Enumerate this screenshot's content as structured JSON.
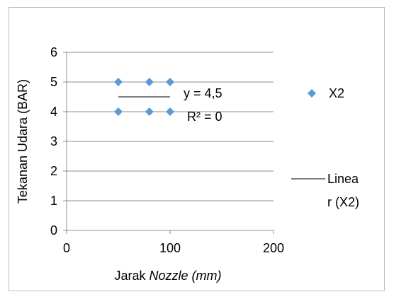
{
  "chart_data": {
    "type": "scatter",
    "title": "",
    "xlabel": "Jarak ",
    "xlabel_italic": "Nozzle (mm)",
    "ylabel": "Tekanan Udara (BAR)",
    "xlim": [
      0,
      200
    ],
    "ylim": [
      0,
      6
    ],
    "xticks": [
      0,
      100,
      200
    ],
    "yticks": [
      0,
      1,
      2,
      3,
      4,
      5,
      6
    ],
    "grid": true,
    "legend_position": "right",
    "series": [
      {
        "name": "X2",
        "color": "#5b9bd5",
        "marker": "diamond",
        "points": [
          {
            "x": 50,
            "y": 5
          },
          {
            "x": 80,
            "y": 5
          },
          {
            "x": 100,
            "y": 5
          },
          {
            "x": 50,
            "y": 4
          },
          {
            "x": 80,
            "y": 4
          },
          {
            "x": 100,
            "y": 4
          }
        ]
      }
    ],
    "trendline": {
      "name_line1": "Linea",
      "name_line2": "r (X2)",
      "color": "#000000",
      "x_range": [
        50,
        100
      ],
      "y_value": 4.5,
      "equation": "y = 4,5",
      "r_squared": "R² = 0"
    }
  }
}
